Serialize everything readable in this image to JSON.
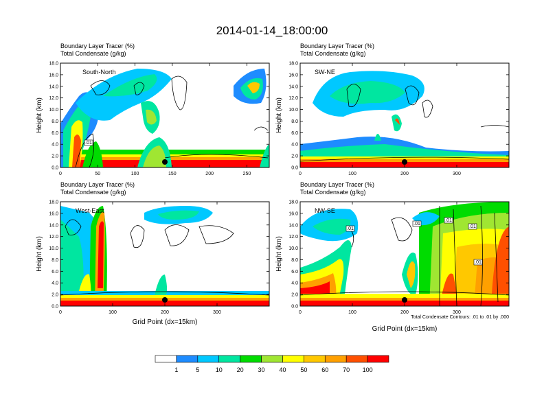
{
  "figure": {
    "title": "2014-01-14_18:00:00",
    "note": "Total Condensate Contours: .01 to .01 by .000",
    "xlabel": "Grid Point (dx=15km)",
    "ylabel": "Height (km)"
  },
  "colorbar": {
    "levels": [
      "1",
      "5",
      "10",
      "20",
      "30",
      "40",
      "50",
      "60",
      "70",
      "100"
    ],
    "colors": [
      "#ffffff",
      "#1e8cff",
      "#00c8ff",
      "#00e6a0",
      "#00dc00",
      "#a0e632",
      "#ffff00",
      "#ffc800",
      "#ffa000",
      "#ff5000",
      "#ff0000"
    ]
  },
  "chart_data": [
    {
      "type": "contour",
      "name": "South-North",
      "top_left": "Boundary Layer Tracer   (%)",
      "top_left2": "Total Condensate   (g/kg)",
      "xlim": [
        0,
        280
      ],
      "xticks": [
        0,
        50,
        100,
        150,
        200,
        250
      ],
      "ylim": [
        0,
        18
      ],
      "yticks": [
        "0.0",
        "2.0",
        "4.0",
        "6.0",
        "8.0",
        "10.0",
        "12.0",
        "14.0",
        "16.0",
        "18.0"
      ],
      "marker_x": 140,
      "contour_labels": [
        ".01"
      ]
    },
    {
      "type": "contour",
      "name": "SW-NE",
      "top_left": "Boundary Layer Tracer   (%)",
      "top_left2": "Total Condensate   (g/kg)",
      "xlim": [
        0,
        400
      ],
      "xticks": [
        0,
        100,
        200,
        300
      ],
      "ylim": [
        0,
        18
      ],
      "yticks": [
        "0.0",
        "2.0",
        "4.0",
        "6.0",
        "8.0",
        "10.0",
        "12.0",
        "14.0",
        "16.0",
        "18.0"
      ],
      "marker_x": 200,
      "contour_labels": []
    },
    {
      "type": "contour",
      "name": "West-East",
      "top_left": "Boundary Layer Tracer   (%)",
      "top_left2": "Total Condensate   (g/kg)",
      "xlim": [
        0,
        400
      ],
      "xticks": [
        0,
        100,
        200,
        300
      ],
      "ylim": [
        0,
        18
      ],
      "yticks": [
        "0.0",
        "2.0",
        "4.0",
        "6.0",
        "8.0",
        "10.0",
        "12.0",
        "14.0",
        "16.0",
        "18.0"
      ],
      "marker_x": 200,
      "contour_labels": []
    },
    {
      "type": "contour",
      "name": "NW-SE",
      "top_left": "Boundary Layer Tracer   (%)",
      "top_left2": "Total Condensate   (g/kg)",
      "xlim": [
        0,
        400
      ],
      "xticks": [
        0,
        100,
        200,
        300
      ],
      "ylim": [
        0,
        18
      ],
      "yticks": [
        "0.0",
        "2.0",
        "4.0",
        "6.0",
        "8.0",
        "10.0",
        "12.0",
        "14.0",
        "16.0",
        "18.0"
      ],
      "marker_x": 200,
      "contour_labels": [
        ".01",
        ".01",
        ".01",
        ".01",
        ".01"
      ]
    }
  ]
}
